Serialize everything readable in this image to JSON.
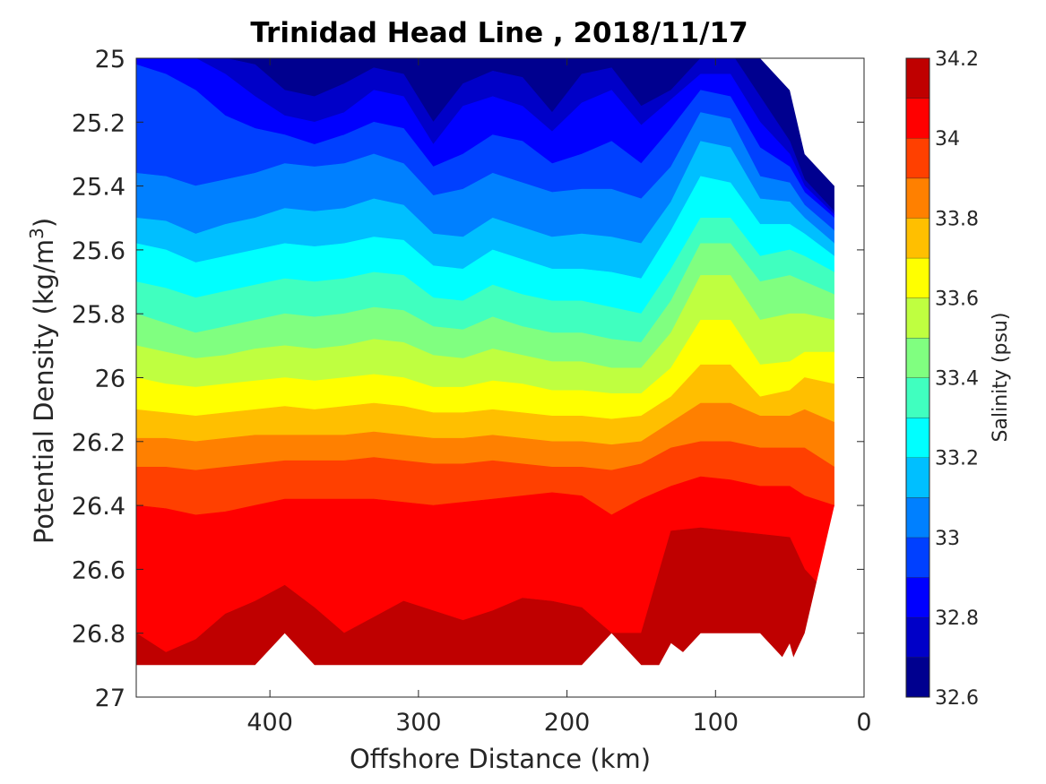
{
  "chart_data": {
    "type": "filled-contour",
    "title": "Trinidad Head Line , 2018/11/17",
    "xlabel": "Offshore Distance (km)",
    "ylabel": "Potential Density (kg/m",
    "ylabel_sup": "3",
    "ylabel_tail": ")",
    "xlim": [
      490,
      0
    ],
    "ylim": [
      25,
      27
    ],
    "x_reversed": true,
    "y_reversed": true,
    "xticks": [
      400,
      300,
      200,
      100,
      0
    ],
    "xtick_labels": [
      "400",
      "300",
      "200",
      "100",
      "0"
    ],
    "yticks": [
      25,
      25.2,
      25.4,
      25.6,
      25.8,
      26,
      26.2,
      26.4,
      26.6,
      26.8,
      27
    ],
    "ytick_labels": [
      "25",
      "25.2",
      "25.4",
      "25.6",
      "25.8",
      "26",
      "26.2",
      "26.4",
      "26.6",
      "26.8",
      "27"
    ],
    "colorbar": {
      "label": "Salinity (psu)",
      "range": [
        32.6,
        34.2
      ],
      "levels": [
        32.6,
        32.7,
        32.8,
        32.9,
        33.0,
        33.1,
        33.2,
        33.3,
        33.4,
        33.5,
        33.6,
        33.7,
        33.8,
        33.9,
        34.0,
        34.1,
        34.2
      ],
      "tick_values": [
        32.6,
        32.8,
        33,
        33.2,
        33.4,
        33.6,
        33.8,
        34,
        34.2
      ],
      "tick_labels": [
        "32.6",
        "32.8",
        "33",
        "33.2",
        "33.4",
        "33.6",
        "33.8",
        "34",
        "34.2"
      ],
      "colors": [
        "#00008f",
        "#0000c8",
        "#0000ff",
        "#0040ff",
        "#0080ff",
        "#00bfff",
        "#00ffff",
        "#40ffbf",
        "#80ff80",
        "#bfff40",
        "#ffff00",
        "#ffbf00",
        "#ff8000",
        "#ff4000",
        "#ff0000",
        "#bf0000"
      ]
    },
    "distances": [
      490,
      470,
      450,
      430,
      410,
      390,
      370,
      350,
      330,
      310,
      290,
      270,
      250,
      230,
      210,
      190,
      170,
      150,
      130,
      110,
      90,
      70,
      50,
      40,
      20
    ],
    "surface_density": [
      25.0,
      25.0,
      25.0,
      25.0,
      25.0,
      25.0,
      25.0,
      25.0,
      25.0,
      25.0,
      25.0,
      25.0,
      25.0,
      25.0,
      25.0,
      25.0,
      25.0,
      25.0,
      25.0,
      25.0,
      25.0,
      25.0,
      25.1,
      25.3,
      25.4
    ],
    "bottom_density": [
      26.9,
      26.9,
      26.9,
      26.9,
      26.9,
      26.8,
      26.9,
      26.9,
      26.9,
      26.9,
      26.9,
      26.9,
      26.9,
      26.9,
      26.9,
      26.9,
      26.8,
      26.9,
      26.9,
      26.8,
      26.8,
      26.8,
      26.9,
      26.8,
      26.4
    ],
    "isohalines": [
      {
        "salinity": 32.7,
        "density": [
          24.98,
          24.98,
          24.98,
          25.0,
          25.02,
          25.1,
          25.12,
          25.08,
          25.03,
          25.05,
          25.2,
          25.08,
          25.04,
          25.06,
          25.17,
          25.05,
          25.03,
          25.15,
          25.1,
          25.0,
          24.98,
          25.12,
          25.26,
          25.38,
          25.48
        ]
      },
      {
        "salinity": 32.8,
        "density": [
          24.98,
          24.98,
          25.0,
          25.05,
          25.12,
          25.18,
          25.2,
          25.17,
          25.1,
          25.12,
          25.27,
          25.15,
          25.12,
          25.15,
          25.23,
          25.14,
          25.1,
          25.21,
          25.13,
          25.05,
          25.05,
          25.2,
          25.3,
          25.4,
          25.49
        ]
      },
      {
        "salinity": 32.9,
        "density": [
          25.02,
          25.05,
          25.1,
          25.18,
          25.22,
          25.24,
          25.27,
          25.24,
          25.2,
          25.22,
          25.34,
          25.3,
          25.24,
          25.26,
          25.33,
          25.3,
          25.26,
          25.33,
          25.22,
          25.1,
          25.12,
          25.28,
          25.34,
          25.42,
          25.5
        ]
      },
      {
        "salinity": 33.0,
        "density": [
          25.36,
          25.37,
          25.4,
          25.38,
          25.36,
          25.33,
          25.34,
          25.33,
          25.3,
          25.33,
          25.43,
          25.41,
          25.36,
          25.39,
          25.42,
          25.41,
          25.41,
          25.44,
          25.34,
          25.17,
          25.19,
          25.37,
          25.39,
          25.46,
          25.54
        ]
      },
      {
        "salinity": 33.1,
        "density": [
          25.5,
          25.51,
          25.55,
          25.52,
          25.5,
          25.47,
          25.48,
          25.47,
          25.44,
          25.46,
          25.55,
          25.56,
          25.5,
          25.53,
          25.56,
          25.55,
          25.56,
          25.58,
          25.45,
          25.26,
          25.28,
          25.44,
          25.45,
          25.5,
          25.58
        ]
      },
      {
        "salinity": 33.2,
        "density": [
          25.58,
          25.6,
          25.64,
          25.62,
          25.6,
          25.58,
          25.59,
          25.58,
          25.56,
          25.57,
          25.65,
          25.66,
          25.6,
          25.63,
          25.66,
          25.66,
          25.67,
          25.69,
          25.54,
          25.37,
          25.39,
          25.52,
          25.52,
          25.55,
          25.62
        ]
      },
      {
        "salinity": 33.3,
        "density": [
          25.7,
          25.72,
          25.75,
          25.73,
          25.71,
          25.69,
          25.7,
          25.69,
          25.67,
          25.68,
          25.75,
          25.76,
          25.71,
          25.74,
          25.76,
          25.76,
          25.78,
          25.8,
          25.66,
          25.5,
          25.5,
          25.62,
          25.6,
          25.62,
          25.67
        ]
      },
      {
        "salinity": 33.4,
        "density": [
          25.8,
          25.83,
          25.86,
          25.84,
          25.82,
          25.8,
          25.81,
          25.8,
          25.78,
          25.79,
          25.84,
          25.85,
          25.81,
          25.84,
          25.86,
          25.86,
          25.88,
          25.89,
          25.76,
          25.58,
          25.58,
          25.7,
          25.68,
          25.7,
          25.74
        ]
      },
      {
        "salinity": 33.5,
        "density": [
          25.9,
          25.92,
          25.94,
          25.93,
          25.91,
          25.9,
          25.91,
          25.9,
          25.88,
          25.89,
          25.93,
          25.94,
          25.91,
          25.93,
          25.95,
          25.95,
          25.97,
          25.97,
          25.86,
          25.68,
          25.68,
          25.82,
          25.8,
          25.8,
          25.82
        ]
      },
      {
        "salinity": 33.6,
        "density": [
          26.0,
          26.02,
          26.03,
          26.02,
          26.01,
          26.0,
          26.01,
          26.0,
          25.99,
          26.0,
          26.03,
          26.03,
          26.01,
          26.02,
          26.04,
          26.04,
          26.05,
          26.05,
          25.97,
          25.82,
          25.82,
          25.96,
          25.95,
          25.92,
          25.92
        ]
      },
      {
        "salinity": 33.7,
        "density": [
          26.1,
          26.11,
          26.12,
          26.11,
          26.1,
          26.09,
          26.1,
          26.09,
          26.08,
          26.09,
          26.11,
          26.11,
          26.1,
          26.11,
          26.12,
          26.12,
          26.13,
          26.12,
          26.06,
          25.96,
          25.96,
          26.06,
          26.04,
          26.0,
          26.02
        ]
      },
      {
        "salinity": 33.8,
        "density": [
          26.19,
          26.19,
          26.2,
          26.19,
          26.18,
          26.18,
          26.18,
          26.18,
          26.17,
          26.18,
          26.19,
          26.19,
          26.18,
          26.19,
          26.2,
          26.2,
          26.21,
          26.2,
          26.14,
          26.08,
          26.08,
          26.12,
          26.12,
          26.1,
          26.14
        ]
      },
      {
        "salinity": 33.9,
        "density": [
          26.28,
          26.28,
          26.29,
          26.28,
          26.27,
          26.26,
          26.26,
          26.26,
          26.25,
          26.26,
          26.27,
          26.27,
          26.26,
          26.27,
          26.28,
          26.28,
          26.29,
          26.27,
          26.22,
          26.2,
          26.2,
          26.22,
          26.22,
          26.22,
          26.28
        ]
      },
      {
        "salinity": 34.0,
        "density": [
          26.4,
          26.41,
          26.43,
          26.42,
          26.4,
          26.38,
          26.38,
          26.38,
          26.38,
          26.39,
          26.4,
          26.39,
          26.38,
          26.37,
          26.36,
          26.37,
          26.43,
          26.38,
          26.34,
          26.31,
          26.32,
          26.34,
          26.34,
          26.37,
          26.4
        ]
      },
      {
        "salinity": 34.1,
        "density": [
          26.8,
          26.86,
          26.82,
          26.74,
          26.7,
          26.65,
          26.72,
          26.8,
          26.75,
          26.7,
          26.73,
          26.76,
          26.73,
          26.69,
          26.7,
          26.72,
          26.8,
          26.8,
          26.48,
          26.47,
          26.48,
          26.49,
          26.5,
          26.6,
          26.7
        ]
      },
      {
        "salinity": 34.2,
        "density": [
          27.0,
          27.0,
          27.0,
          27.0,
          27.0,
          27.0,
          27.0,
          27.0,
          27.0,
          27.0,
          27.0,
          27.0,
          27.0,
          27.0,
          27.0,
          27.0,
          27.0,
          27.0,
          26.83,
          26.9,
          27.0,
          27.0,
          26.83,
          27.0,
          27.0
        ]
      }
    ]
  }
}
